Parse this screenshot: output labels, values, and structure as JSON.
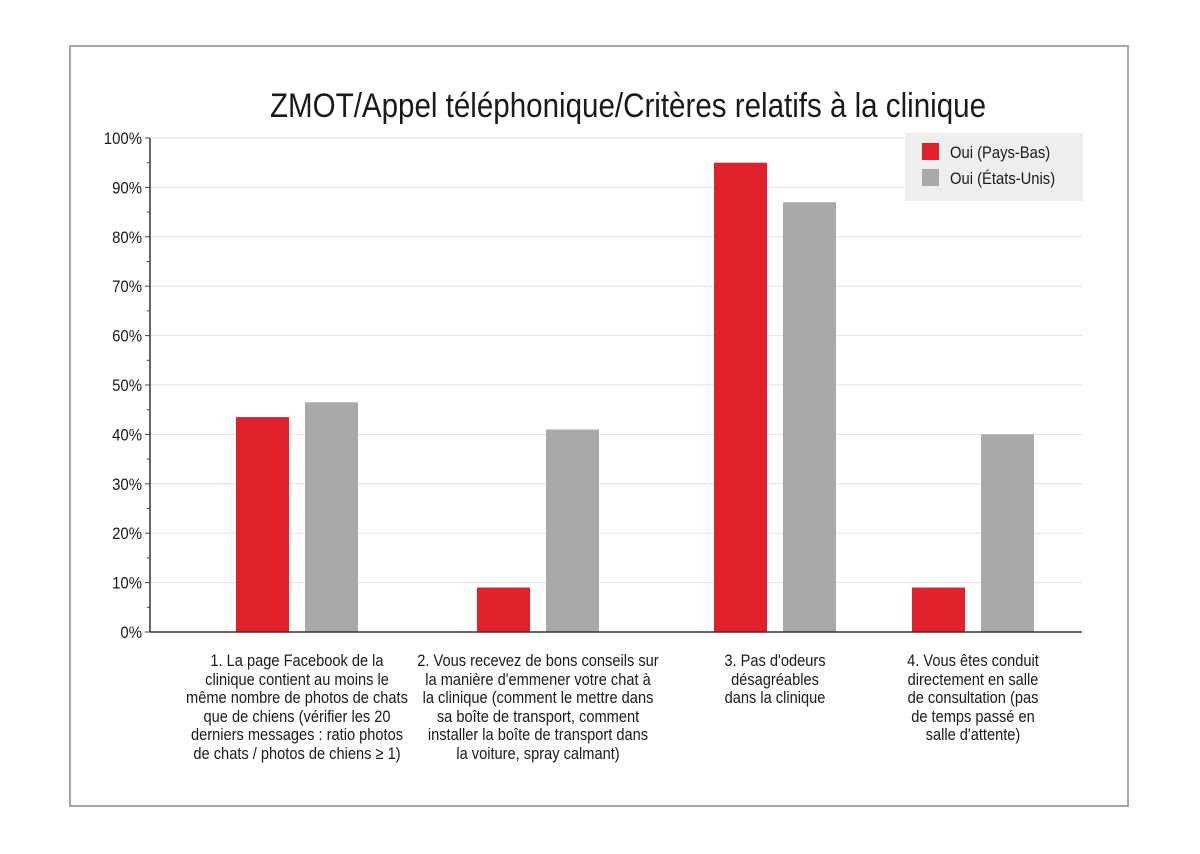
{
  "chart_data": {
    "type": "bar",
    "title": "ZMOT/Appel téléphonique/Critères relatifs à la clinique",
    "xlabel": "",
    "ylabel": "",
    "ylim": [
      0,
      100
    ],
    "yticks": [
      0,
      10,
      20,
      30,
      40,
      50,
      60,
      70,
      80,
      90,
      100
    ],
    "ytick_labels": [
      "0%",
      "10%",
      "20%",
      "30%",
      "40%",
      "50%",
      "60%",
      "70%",
      "80%",
      "90%",
      "100%"
    ],
    "grid": true,
    "legend_position": "top-right",
    "categories": [
      "1. La page Facebook de la clinique contient au moins le même nombre de photos de chats que de chiens (vérifier les 20 derniers messages : ratio photos de chats / photos de chiens ≥ 1)",
      "2. Vous recevez de bons conseils sur la manière d'emmener votre chat à la clinique (comment le mettre dans sa boîte de transport, comment installer la boîte de transport dans la voiture, spray calmant)",
      "3. Pas d'odeurs désagréables dans la clinique",
      "4. Vous êtes conduit directement en salle de consultation (pas de temps passé en salle d'attente)"
    ],
    "category_lines": [
      [
        "1. La page Facebook de la",
        "clinique contient au moins le",
        "même nombre de photos de chats",
        "que de chiens (vérifier les 20",
        "derniers messages : ratio photos",
        "de chats / photos de chiens ≥ 1)"
      ],
      [
        "2. Vous recevez de bons conseils sur",
        "la manière d'emmener votre chat à",
        "la clinique (comment le mettre dans",
        "sa boîte de transport, comment",
        "installer la boîte de transport dans",
        "la voiture, spray calmant)"
      ],
      [
        "3. Pas d'odeurs",
        "désagréables",
        "dans la clinique"
      ],
      [
        "4. Vous êtes conduit",
        "directement en salle",
        "de consultation (pas",
        "de temps passé en",
        "salle d'attente)"
      ]
    ],
    "series": [
      {
        "name": "Oui (Pays-Bas)",
        "color": "#e0202a",
        "values": [
          43.5,
          9,
          95,
          9
        ]
      },
      {
        "name": "Oui (États-Unis)",
        "color": "#a8a9ab",
        "values": [
          46.5,
          41,
          87,
          40
        ]
      }
    ]
  }
}
